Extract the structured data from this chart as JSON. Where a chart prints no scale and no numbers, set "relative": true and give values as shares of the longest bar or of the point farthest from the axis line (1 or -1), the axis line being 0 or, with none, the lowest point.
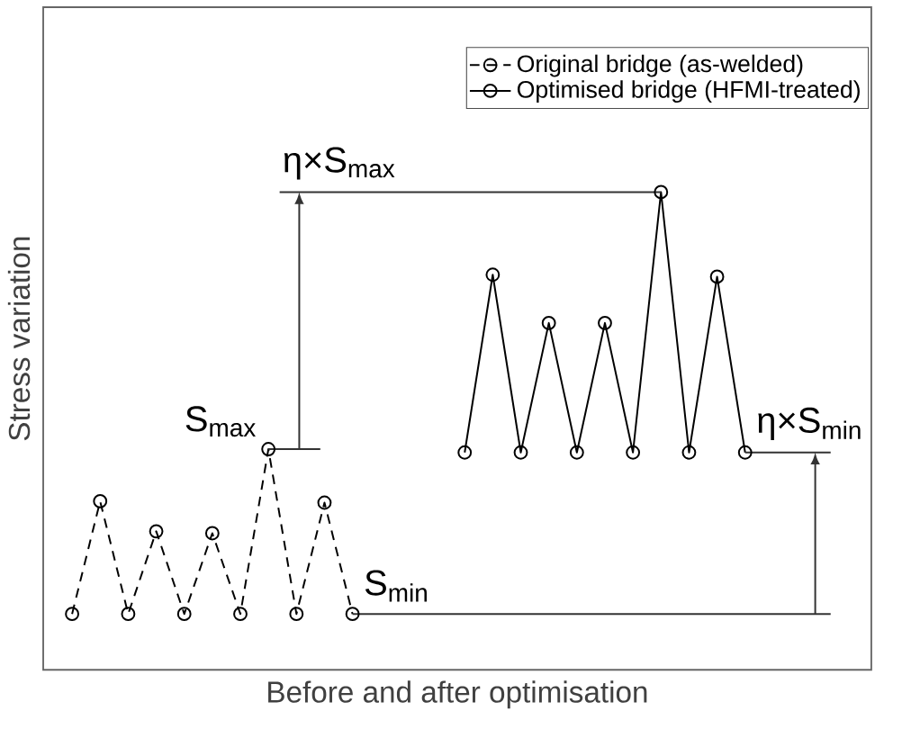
{
  "chart_data": {
    "type": "line",
    "relative": true,
    "xlabel": "Before and after optimisation",
    "ylabel": "Stress variation",
    "categories": [
      null,
      null,
      null,
      null,
      null,
      null,
      null,
      null,
      null,
      null,
      null,
      null,
      null,
      null,
      null,
      null,
      null,
      null,
      null,
      null,
      null,
      null,
      null,
      null,
      null
    ],
    "series": [
      {
        "name": "Original bridge (as-welded)",
        "color": "#000000",
        "line_style": "dashed",
        "values": [
          0.117,
          0.353,
          0.117,
          0.29,
          0.117,
          0.286,
          0.117,
          0.462,
          0.117,
          0.35,
          0.117,
          null,
          null,
          null,
          null,
          null,
          null,
          null,
          null,
          null,
          null,
          null,
          null,
          null,
          null
        ]
      },
      {
        "name": "Optimised bridge (HFMI-treated)",
        "color": "#000000",
        "line_style": "solid",
        "values": [
          null,
          null,
          null,
          null,
          null,
          null,
          null,
          null,
          null,
          null,
          null,
          null,
          null,
          null,
          0.455,
          0.827,
          0.455,
          0.726,
          0.455,
          0.726,
          0.455,
          1,
          0.455,
          0.823,
          0.455
        ]
      }
    ],
    "marker": "circle",
    "legend": "top right",
    "annotations": [
      "S$_{max}$",
      "S$_{min}$",
      "η×S$_{max}$",
      "η×S$_{min}$"
    ]
  }
}
